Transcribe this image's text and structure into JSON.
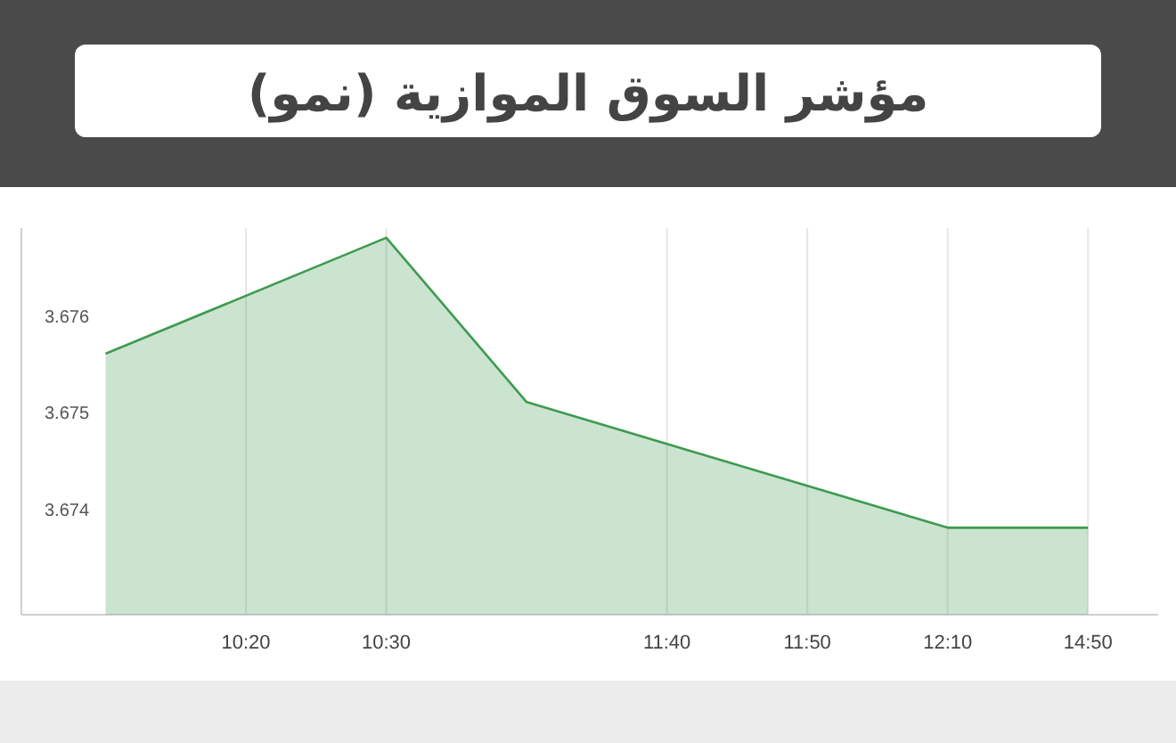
{
  "chart_data": {
    "type": "area",
    "title": "مؤشر السوق الموازية (نمو)",
    "categories": [
      null,
      "10:20",
      "10:30",
      null,
      "11:40",
      "11:50",
      "12:10",
      "14:50"
    ],
    "series": [
      {
        "color": "#3d9b4f",
        "values": [
          3.6756,
          null,
          3.6768,
          3.6751,
          null,
          null,
          3.6738,
          3.6738
        ]
      }
    ],
    "ylim": [
      3.6729,
      3.6769
    ],
    "yticks": [
      3.674,
      3.675,
      3.676
    ],
    "grid": "x"
  }
}
